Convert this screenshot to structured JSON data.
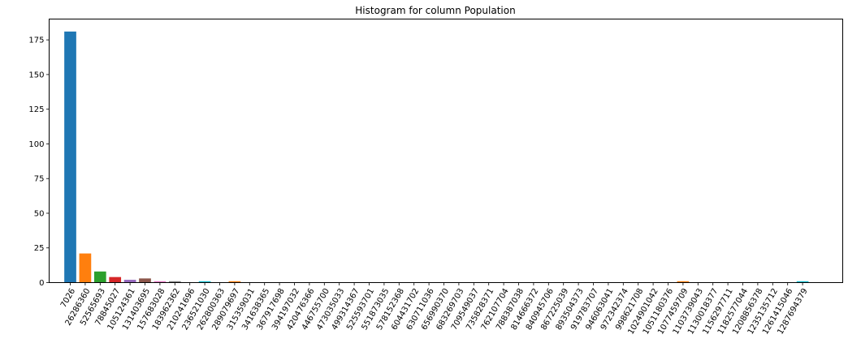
{
  "chart_data": {
    "type": "bar",
    "title": "Histogram for column Population",
    "xlabel": "",
    "ylabel": "",
    "ylim": [
      0,
      190
    ],
    "yticks": [
      0,
      25,
      50,
      75,
      100,
      125,
      150,
      175
    ],
    "grid": false,
    "categories": [
      "7026",
      "26286360",
      "52565693",
      "78845027",
      "105124361",
      "131403695",
      "157683028",
      "183962362",
      "210241696",
      "236521030",
      "262800363",
      "289079697",
      "315359031",
      "341638365",
      "367917698",
      "394197032",
      "420476366",
      "446755700",
      "473035033",
      "499314367",
      "525593701",
      "551873035",
      "578152368",
      "604431702",
      "630711036",
      "656990370",
      "683269703",
      "709549037",
      "735828371",
      "762107704",
      "788387038",
      "814666372",
      "840945706",
      "867225039",
      "893504373",
      "919783707",
      "946063041",
      "972342374",
      "998621708",
      "1024901042",
      "1051180376",
      "1077459709",
      "1103739043",
      "1130018377",
      "1156297711",
      "1182577044",
      "1208856378",
      "1235135712",
      "1261415046",
      "1287694379"
    ],
    "values": [
      181,
      21,
      8,
      4,
      2,
      3,
      1,
      1,
      0,
      1,
      0,
      1,
      0,
      0,
      0,
      0,
      0,
      0,
      0,
      0,
      0,
      0,
      0,
      0,
      0,
      0,
      0,
      0,
      0,
      0,
      0,
      0,
      0,
      0,
      0,
      0,
      0,
      0,
      0,
      0,
      0,
      1,
      0,
      0,
      0,
      0,
      0,
      0,
      0,
      1
    ],
    "colors": [
      "#1f77b4",
      "#ff7f0e",
      "#2ca02c",
      "#d62728",
      "#9467bd",
      "#8c564b",
      "#e377c2",
      "#7f7f7f",
      "#bcbd22",
      "#17becf"
    ]
  }
}
